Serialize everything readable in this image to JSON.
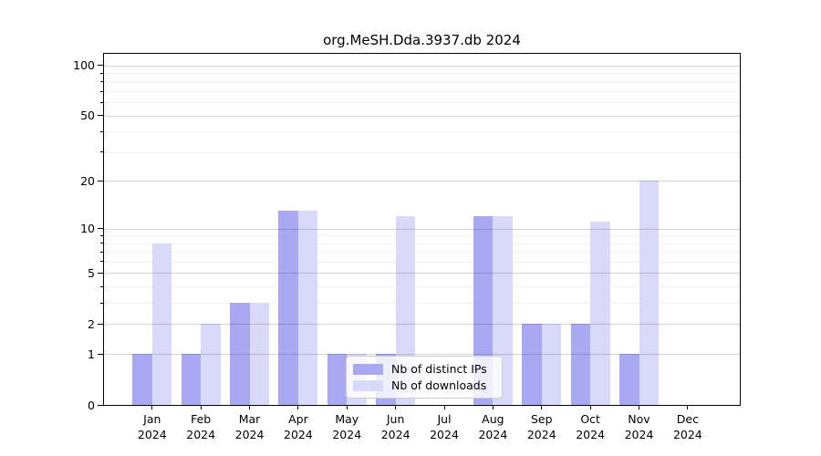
{
  "chart_data": {
    "type": "bar",
    "title": "org.MeSH.Dda.3937.db 2024",
    "categories": [
      "Jan 2024",
      "Feb 2024",
      "Mar 2024",
      "Apr 2024",
      "May 2024",
      "Jun 2024",
      "Jul 2024",
      "Aug 2024",
      "Sep 2024",
      "Oct 2024",
      "Nov 2024",
      "Dec 2024"
    ],
    "series": [
      {
        "name": "Nb of distinct IPs",
        "color": "#a9a9f2",
        "values": [
          1,
          1,
          3,
          13,
          1,
          1,
          0,
          12,
          2,
          2,
          1,
          0
        ]
      },
      {
        "name": "Nb of downloads",
        "color": "#d9d9fa",
        "values": [
          8,
          2,
          3,
          13,
          1,
          12,
          0,
          12,
          2,
          11,
          20,
          0
        ]
      }
    ],
    "xlabel": "",
    "ylabel": "",
    "yscale": "log1p",
    "ylim": [
      0,
      115
    ],
    "yticks": [
      0,
      1,
      2,
      5,
      10,
      20,
      50,
      100
    ],
    "minor_yticks": [
      3,
      4,
      6,
      7,
      8,
      9,
      30,
      40,
      60,
      70,
      80,
      90
    ],
    "grid": "horizontal-major-and-minor",
    "legend_position": "lower-center-inside"
  },
  "colors": {
    "background": "#ffffff",
    "axis": "#000000",
    "major_grid": "rgba(0,0,0,0.16)",
    "minor_grid": "rgba(0,0,0,0.06)",
    "legend_border": "#cccccc"
  }
}
